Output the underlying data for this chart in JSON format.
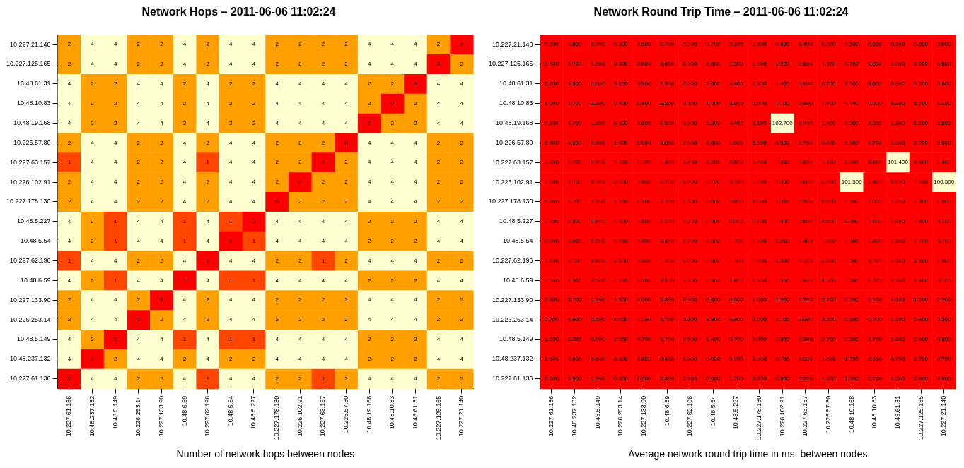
{
  "chart_data": [
    {
      "type": "heatmap",
      "title": "Network Hops – 2011-06-06 11:02:24",
      "xlabel": "Number of network hops between nodes",
      "data_labels": true,
      "categories": [
        "10.227.61.136",
        "10.48.237.132",
        "10.48.5.149",
        "10.226.253.14",
        "10.227.133.90",
        "10.48.6.59",
        "10.227.62.196",
        "10.48.5.54",
        "10.48.5.227",
        "10.227.178.130",
        "10.226.102.91",
        "10.227.63.157",
        "10.226.57.80",
        "10.48.19.168",
        "10.48.10.83",
        "10.48.61.31",
        "10.227.125.165",
        "10.227.21.140"
      ],
      "y_categories": [
        "10.227.21.140",
        "10.227.125.165",
        "10.48.61.31",
        "10.48.10.83",
        "10.48.19.168",
        "10.226.57.80",
        "10.227.63.157",
        "10.226.102.91",
        "10.227.178.130",
        "10.48.5.227",
        "10.48.5.54",
        "10.227.62.196",
        "10.48.6.59",
        "10.227.133.90",
        "10.226.253.14",
        "10.48.5.149",
        "10.48.237.132",
        "10.227.61.136"
      ],
      "cells": [
        [
          2,
          4,
          4,
          2,
          2,
          4,
          2,
          4,
          4,
          2,
          2,
          2,
          2,
          4,
          4,
          4,
          2,
          0
        ],
        [
          2,
          4,
          4,
          2,
          2,
          4,
          2,
          4,
          4,
          2,
          2,
          2,
          2,
          4,
          4,
          4,
          0,
          2
        ],
        [
          4,
          2,
          2,
          4,
          4,
          2,
          4,
          2,
          2,
          4,
          4,
          4,
          4,
          2,
          2,
          0,
          4,
          4
        ],
        [
          4,
          2,
          2,
          4,
          4,
          2,
          4,
          2,
          2,
          4,
          4,
          4,
          4,
          2,
          0,
          2,
          4,
          4
        ],
        [
          4,
          2,
          2,
          4,
          4,
          2,
          4,
          2,
          2,
          4,
          4,
          4,
          4,
          0,
          2,
          2,
          4,
          4
        ],
        [
          2,
          4,
          4,
          2,
          2,
          4,
          2,
          4,
          4,
          2,
          2,
          2,
          0,
          4,
          4,
          4,
          2,
          2
        ],
        [
          1,
          4,
          4,
          2,
          2,
          4,
          1,
          4,
          4,
          2,
          2,
          0,
          2,
          4,
          4,
          4,
          2,
          2
        ],
        [
          2,
          4,
          4,
          2,
          2,
          4,
          2,
          4,
          4,
          2,
          0,
          2,
          2,
          4,
          4,
          4,
          2,
          2
        ],
        [
          2,
          4,
          4,
          2,
          2,
          4,
          2,
          4,
          4,
          0,
          2,
          2,
          2,
          4,
          4,
          4,
          2,
          2
        ],
        [
          4,
          2,
          1,
          4,
          4,
          1,
          4,
          1,
          0,
          4,
          4,
          4,
          4,
          2,
          2,
          2,
          4,
          4
        ],
        [
          4,
          2,
          1,
          4,
          4,
          1,
          4,
          0,
          1,
          4,
          4,
          4,
          4,
          2,
          2,
          2,
          4,
          4
        ],
        [
          1,
          4,
          4,
          2,
          2,
          4,
          0,
          4,
          4,
          2,
          2,
          1,
          2,
          4,
          4,
          4,
          2,
          2
        ],
        [
          4,
          2,
          1,
          4,
          4,
          0,
          4,
          1,
          1,
          4,
          4,
          4,
          4,
          2,
          2,
          2,
          4,
          4
        ],
        [
          2,
          4,
          4,
          2,
          0,
          4,
          2,
          4,
          4,
          2,
          2,
          2,
          2,
          4,
          4,
          4,
          2,
          2
        ],
        [
          2,
          4,
          4,
          0,
          2,
          4,
          2,
          4,
          4,
          2,
          2,
          2,
          2,
          4,
          4,
          4,
          2,
          2
        ],
        [
          4,
          2,
          0,
          4,
          4,
          1,
          4,
          1,
          1,
          4,
          4,
          4,
          4,
          2,
          2,
          2,
          4,
          4
        ],
        [
          4,
          0,
          2,
          4,
          4,
          2,
          4,
          2,
          2,
          4,
          4,
          4,
          4,
          2,
          2,
          2,
          4,
          4
        ],
        [
          0,
          4,
          4,
          2,
          2,
          4,
          1,
          4,
          4,
          2,
          2,
          1,
          2,
          4,
          4,
          4,
          2,
          2
        ]
      ]
    },
    {
      "type": "heatmap",
      "title": "Network Round Trip Time – 2011-06-06 11:02:24",
      "xlabel": "Average network round trip time in ms. between nodes",
      "categories": [
        "10.227.61.136",
        "10.48.237.132",
        "10.48.5.149",
        "10.226.253.14",
        "10.227.133.90",
        "10.48.6.59",
        "10.227.62.196",
        "10.48.5.54",
        "10.48.5.227",
        "10.227.178.130",
        "10.226.102.91",
        "10.227.63.157",
        "10.226.57.80",
        "10.48.19.168",
        "10.48.10.83",
        "10.48.61.31",
        "10.227.125.165",
        "10.227.21.140"
      ],
      "y_categories": [
        "10.227.21.140",
        "10.227.125.165",
        "10.48.61.31",
        "10.48.10.83",
        "10.48.19.168",
        "10.226.57.80",
        "10.227.63.157",
        "10.226.102.91",
        "10.227.178.130",
        "10.48.5.227",
        "10.48.5.54",
        "10.227.62.196",
        "10.48.6.59",
        "10.227.133.90",
        "10.226.253.14",
        "10.48.5.149",
        "10.48.237.132",
        "10.227.61.136"
      ],
      "cells": [
        [
          0.5,
          0.8,
          0.7,
          0.8,
          0.6,
          0.7,
          0.5,
          0.7,
          2.1,
          1.9,
          0.6,
          3.4,
          0.5,
          0.6,
          0.6,
          0.6,
          0.8,
          0.0
        ],
        [
          0.6,
          0.7,
          1.0,
          0.8,
          0.6,
          0.6,
          0.9,
          0.6,
          1.3,
          1.5,
          1.2,
          0.6,
          1.3,
          0.7,
          0.8,
          1.0,
          0.0,
          0.5
        ],
        [
          2.7,
          3.5,
          0.6,
          3.1,
          0.9,
          2.9,
          0.6,
          2.6,
          4.4,
          1.3,
          4.4,
          0.9,
          0.7,
          3.2,
          3.8,
          0.0,
          0.7,
          0.6
        ],
        [
          1.0,
          1.7,
          3.1,
          0.9,
          1.9,
          3.8,
          2.1,
          1.0,
          3.0,
          0.8,
          1.1,
          0.9,
          1.0,
          4.4,
          0.0,
          5.2,
          1.7,
          1.1
        ],
        [
          0.8,
          0.7,
          1.9,
          5.6,
          0.6,
          0.6,
          1.3,
          3.3,
          4.4,
          3.1,
          102.7,
          0.7,
          1.9,
          0.0,
          5.0,
          1.8,
          1.2,
          2.8
        ],
        [
          0.9,
          0.6,
          0.9,
          1.6,
          1.0,
          0.8,
          0.5,
          0.6,
          1.0,
          3.6,
          0.9,
          0.7,
          0.0,
          3.0,
          0.7,
          1.0,
          0.7,
          2.0
        ],
        [
          1.8,
          0.7,
          0.9,
          3.1,
          1.1,
          1.4,
          1.4,
          1.2,
          0.8,
          2.4,
          2.5,
          0.0,
          1.1,
          1.1,
          3.6,
          101.4,
          4.9,
          1.4
        ],
        [
          3.0,
          0.7,
          0.7,
          0.6,
          0.8,
          0.7,
          0.6,
          0.7,
          0.7,
          1.2,
          0.0,
          0.6,
          0.9,
          101.5,
          1.4,
          0.8,
          3.1,
          100.5
        ],
        [
          0.9,
          0.7,
          3.9,
          1.0,
          1.3,
          2.1,
          1.5,
          0.6,
          0.6,
          0.0,
          0.5,
          0.5,
          0.9,
          2.2,
          1.0,
          1.9,
          3.3,
          1.8
        ],
        [
          2.3,
          2.2,
          4.8,
          2.8,
          0.8,
          2.1,
          1.7,
          0.9,
          0.0,
          0.8,
          3.5,
          0.8,
          4.6,
          1.8,
          1.6,
          1.4,
          2.4,
          3.1
        ],
        [
          0.9,
          2.8,
          2.0,
          3.0,
          0.9,
          2.4,
          0.6,
          0.0,
          1.7,
          1.7,
          1.2,
          1.4,
          1.6,
          2.3,
          1.8,
          1.5,
          0.7,
          0.7
        ],
        [
          1.6,
          2.1,
          0.8,
          1.1,
          0.5,
          1.9,
          0.0,
          0.8,
          1.1,
          1.9,
          1.5,
          2.1,
          0.8,
          2.0,
          3.7,
          1.5,
          1.8,
          1.9
        ],
        [
          2.5,
          0.5,
          3.5,
          2.2,
          2.3,
          0.0,
          1.9,
          2.8,
          0.8,
          2.5,
          2.3,
          1.8,
          4.3,
          3.0,
          2.7,
          3.5,
          0.8,
          0.7
        ],
        [
          0.8,
          0.7,
          1.2,
          1.3,
          0.0,
          0.8,
          0.9,
          0.8,
          0.6,
          1.0,
          1.3,
          1.3,
          2.7,
          0.6,
          1.1,
          1.1,
          1.2,
          1.2
        ],
        [
          0.7,
          0.9,
          2.3,
          0.0,
          4.1,
          0.7,
          2.1,
          3.9,
          0.9,
          0.6,
          2.1,
          2.0,
          3.3,
          0.8,
          0.7,
          1.9,
          0.9,
          0.5
        ],
        [
          1.6,
          1.2,
          0.0,
          1.5,
          0.7,
          0.7,
          0.8,
          1.4,
          0.7,
          0.8,
          0.9,
          2.3,
          0.7,
          0.6,
          3.7,
          1.2,
          0.9,
          0.8
        ],
        [
          1.0,
          0.0,
          0.6,
          0.8,
          0.8,
          0.6,
          1.0,
          0.9,
          0.7,
          0.9,
          0.7,
          0.9,
          1.5,
          1.7,
          2.0,
          0.7,
          0.7,
          0.7
        ],
        [
          0.0,
          1.5,
          1.2,
          0.6,
          1.5,
          0.8,
          1.0,
          0.6,
          1.7,
          0.8,
          0.9,
          3.2,
          1.2,
          1.6,
          0.7,
          1.0,
          0.8,
          0.9
        ]
      ],
      "cell_labels": [
        [
          "0.500",
          "0.800",
          "0.700",
          "0.800",
          "0.600",
          "0.700",
          "0.500",
          "0.700",
          "2.100",
          "1.900",
          "0.600",
          "3.400",
          "0.500",
          "0.600",
          "0.600",
          "0.600",
          "0.800",
          "0.000"
        ],
        [
          "0.600",
          "0.700",
          "1.000",
          "0.800",
          "0.600",
          "0.600",
          "0.900",
          "0.600",
          "1.300",
          "1.500",
          "1.200",
          "0.600",
          "1.300",
          "0.700",
          "0.800",
          "1.000",
          "0.000",
          "0.500"
        ],
        [
          "2.700",
          "3.500",
          "0.600",
          "3.100",
          "0.900",
          "2.900",
          "0.600",
          "2.600",
          "4.400",
          "1.300",
          "4.400",
          "0.900",
          "0.700",
          "3.200",
          "3.800",
          "0.000",
          "0.700",
          "0.600"
        ],
        [
          "1.000",
          "1.700",
          "3.100",
          "0.900",
          "1.900",
          "3.800",
          "2.100",
          "1.000",
          "3.000",
          "0.800",
          "1.100",
          "0.900",
          "1.000",
          "4.400",
          "0.000",
          "5.200",
          "1.700",
          "1.100"
        ],
        [
          "0.800",
          "0.700",
          "1.900",
          "5.600",
          "0.600",
          "0.600",
          "1.300",
          "3.300",
          "4.400",
          "3.100",
          "102.700",
          "0.700",
          "1.900",
          "0.000",
          "5.000",
          "1.800",
          "1.200",
          "2.800"
        ],
        [
          "0.900",
          "0.600",
          "0.900",
          "1.600",
          "1.000",
          "0.800",
          "0.500",
          "0.600",
          "1.000",
          "3.600",
          "0.900",
          "0.700",
          "0.000",
          "3.000",
          "0.700",
          "1.000",
          "0.700",
          "2.000"
        ],
        [
          "1.800",
          "0.700",
          "0.900",
          "3.100",
          "1.100",
          "1.400",
          "1.400",
          "1.200",
          "0.800",
          "2.400",
          "2.500",
          "0.000",
          "1.100",
          "1.100",
          "3.600",
          "101.400",
          "4.900",
          "1.400"
        ],
        [
          "3.000",
          "0.700",
          "0.700",
          "0.600",
          "0.800",
          "0.700",
          "0.600",
          "0.700",
          "0.700",
          "1.200",
          "0.000",
          "0.600",
          "0.900",
          "101.500",
          "1.400",
          "0.800",
          "3.100",
          "100.500"
        ],
        [
          "0.900",
          "0.700",
          "3.900",
          "1.000",
          "1.300",
          "2.100",
          "1.500",
          "0.600",
          "0.600",
          "0.000",
          "0.500",
          "0.500",
          "0.900",
          "2.200",
          "1.000",
          "1.900",
          "3.300",
          "1.800"
        ],
        [
          "2.300",
          "2.200",
          "4.800",
          "2.800",
          "0.800",
          "2.100",
          "1.700",
          "0.900",
          "0.000",
          "0.800",
          "3.500",
          "0.800",
          "4.600",
          "1.800",
          "1.600",
          "1.400",
          "2.400",
          "3.100"
        ],
        [
          "0.900",
          "2.800",
          "2.000",
          "3.000",
          "0.900",
          "2.400",
          "0.600",
          "0.000",
          "1.700",
          "1.700",
          "1.200",
          "1.400",
          "1.600",
          "2.300",
          "1.800",
          "1.500",
          "0.700",
          "0.700"
        ],
        [
          "1.600",
          "2.100",
          "0.800",
          "1.100",
          "0.500",
          "1.900",
          "0.000",
          "0.800",
          "1.100",
          "1.900",
          "1.500",
          "2.100",
          "0.800",
          "2.000",
          "3.700",
          "1.500",
          "1.800",
          "1.900"
        ],
        [
          "2.500",
          "0.500",
          "3.500",
          "2.200",
          "2.300",
          "0.000",
          "1.900",
          "2.800",
          "0.800",
          "2.500",
          "2.300",
          "1.800",
          "4.300",
          "3.000",
          "2.700",
          "3.500",
          "0.800",
          "0.700"
        ],
        [
          "0.800",
          "0.700",
          "1.200",
          "1.300",
          "0.000",
          "0.800",
          "0.900",
          "0.800",
          "0.600",
          "1.000",
          "1.300",
          "1.300",
          "2.700",
          "0.600",
          "1.100",
          "1.100",
          "1.200",
          "1.200"
        ],
        [
          "0.700",
          "0.900",
          "2.300",
          "0.000",
          "4.100",
          "0.700",
          "2.100",
          "3.900",
          "0.900",
          "0.600",
          "2.100",
          "2.000",
          "3.300",
          "0.800",
          "0.700",
          "1.900",
          "0.900",
          "0.500"
        ],
        [
          "1.600",
          "1.200",
          "0.000",
          "1.500",
          "0.700",
          "0.700",
          "0.800",
          "1.400",
          "0.700",
          "0.800",
          "0.900",
          "2.300",
          "0.700",
          "0.600",
          "3.700",
          "1.200",
          "0.900",
          "0.800"
        ],
        [
          "1.000",
          "0.000",
          "0.600",
          "0.800",
          "0.800",
          "0.600",
          "1.000",
          "0.900",
          "0.700",
          "0.900",
          "0.700",
          "0.900",
          "1.500",
          "1.700",
          "2.000",
          "0.700",
          "0.700",
          "0.700"
        ],
        [
          "0.000",
          "1.500",
          "1.200",
          "0.600",
          "1.500",
          "0.800",
          "1.000",
          "0.600",
          "1.700",
          "0.800",
          "0.900",
          "3.200",
          "1.200",
          "1.600",
          "0.700",
          "1.000",
          "0.800",
          "0.900"
        ]
      ]
    }
  ]
}
